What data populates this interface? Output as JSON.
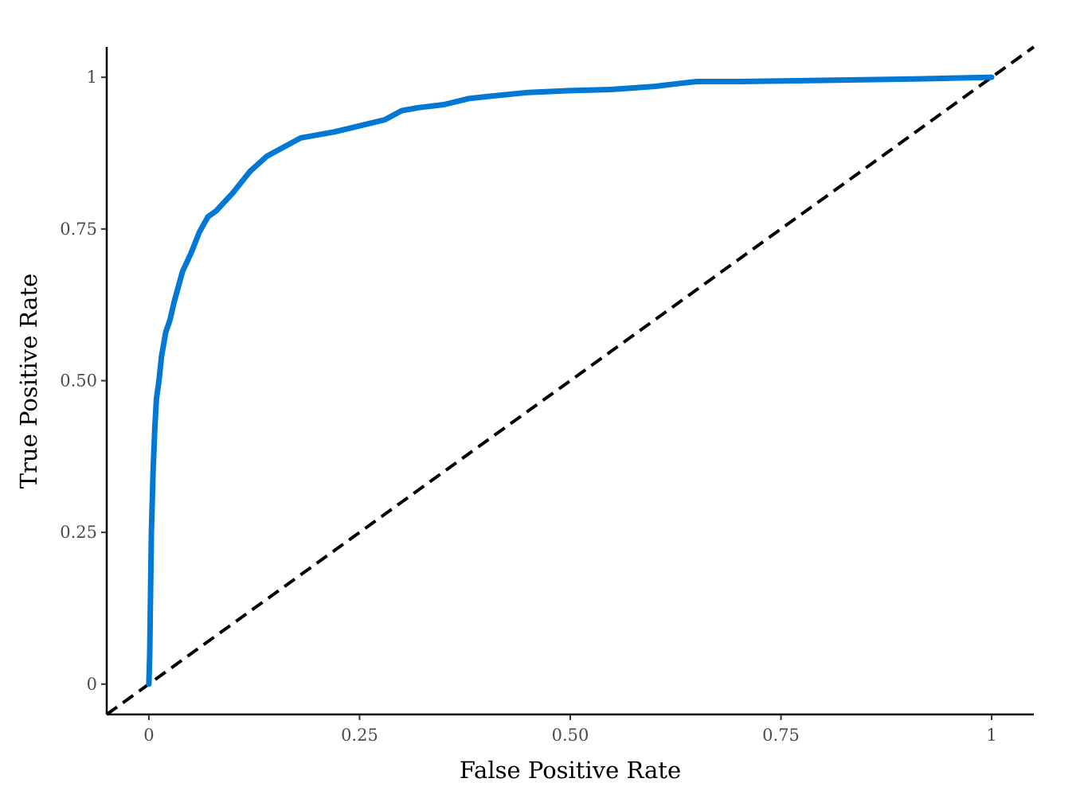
{
  "chart_data": {
    "type": "line",
    "xlabel": "False Positive Rate",
    "ylabel": "True Positive Rate",
    "xlim": [
      -0.05,
      1.05
    ],
    "ylim": [
      -0.05,
      1.05
    ],
    "x_ticks": [
      {
        "value": 0,
        "label": "0"
      },
      {
        "value": 0.25,
        "label": "0.25"
      },
      {
        "value": 0.5,
        "label": "0.50"
      },
      {
        "value": 0.75,
        "label": "0.75"
      },
      {
        "value": 1,
        "label": "1"
      }
    ],
    "y_ticks": [
      {
        "value": 0,
        "label": "0"
      },
      {
        "value": 0.25,
        "label": "0.25"
      },
      {
        "value": 0.5,
        "label": "0.50"
      },
      {
        "value": 0.75,
        "label": "0.75"
      },
      {
        "value": 1,
        "label": "1"
      }
    ],
    "grid": false,
    "series": [
      {
        "style": "solid",
        "color": "#0078d4",
        "x": [
          0,
          0.001,
          0.002,
          0.003,
          0.005,
          0.007,
          0.009,
          0.012,
          0.015,
          0.02,
          0.025,
          0.03,
          0.04,
          0.05,
          0.06,
          0.07,
          0.08,
          0.1,
          0.12,
          0.14,
          0.16,
          0.18,
          0.2,
          0.22,
          0.25,
          0.28,
          0.3,
          0.32,
          0.35,
          0.38,
          0.4,
          0.45,
          0.5,
          0.55,
          0.6,
          0.63,
          0.65,
          0.7,
          0.8,
          0.9,
          1.0
        ],
        "y": [
          0,
          0.05,
          0.15,
          0.25,
          0.35,
          0.42,
          0.47,
          0.5,
          0.54,
          0.58,
          0.6,
          0.63,
          0.68,
          0.71,
          0.745,
          0.77,
          0.78,
          0.81,
          0.845,
          0.87,
          0.885,
          0.9,
          0.905,
          0.91,
          0.92,
          0.93,
          0.945,
          0.95,
          0.955,
          0.965,
          0.968,
          0.975,
          0.978,
          0.98,
          0.985,
          0.99,
          0.993,
          0.993,
          0.995,
          0.997,
          1.0
        ]
      },
      {
        "style": "dashed",
        "color": "#000000",
        "x": [
          -0.05,
          1.05
        ],
        "y": [
          -0.05,
          1.05
        ]
      }
    ]
  }
}
